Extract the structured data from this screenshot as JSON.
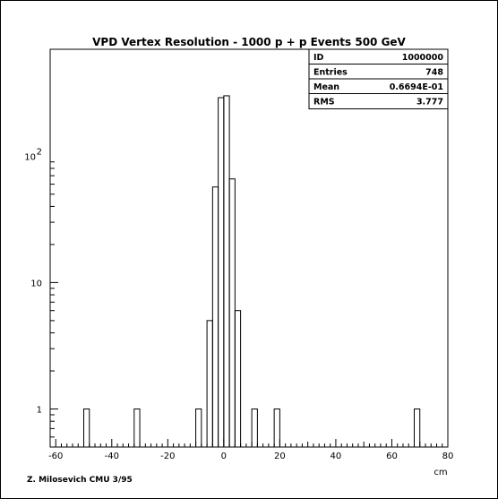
{
  "chart_data": {
    "type": "bar",
    "title": "VPD Vertex Resolution - 1000 p + p Events 500 GeV",
    "xlabel": "cm",
    "ylabel": "",
    "xlim": [
      -62,
      80
    ],
    "ylim": [
      0.5,
      700
    ],
    "yscale": "log",
    "grid": false,
    "x_ticks": [
      -60,
      -40,
      -20,
      0,
      20,
      40,
      60,
      80
    ],
    "x_tick_labels": [
      "-60",
      "-40",
      "-20",
      "0",
      "20",
      "40",
      "60",
      "80"
    ],
    "y_ticks": [
      {
        "value": 1,
        "label": "1",
        "exp": ""
      },
      {
        "value": 10,
        "label": "10",
        "exp": ""
      },
      {
        "value": 100,
        "label": "10",
        "exp": "2"
      }
    ],
    "bin_width": 2,
    "bins": [
      {
        "x": -49,
        "count": 1
      },
      {
        "x": -31,
        "count": 1
      },
      {
        "x": -9,
        "count": 1
      },
      {
        "x": -5,
        "count": 5
      },
      {
        "x": -3,
        "count": 57
      },
      {
        "x": -1,
        "count": 290
      },
      {
        "x": 1,
        "count": 300
      },
      {
        "x": 3,
        "count": 66
      },
      {
        "x": 5,
        "count": 6
      },
      {
        "x": 11,
        "count": 1
      },
      {
        "x": 19,
        "count": 1
      },
      {
        "x": 69,
        "count": 1
      }
    ],
    "stats": [
      {
        "label": "ID",
        "value": "1000000"
      },
      {
        "label": "Entries",
        "value": "748"
      },
      {
        "label": "Mean",
        "value": "0.6694E-01"
      },
      {
        "label": "RMS",
        "value": "3.777"
      }
    ],
    "legend_position": "top-right"
  },
  "credit": "Z. Milosevich CMU 3/95"
}
